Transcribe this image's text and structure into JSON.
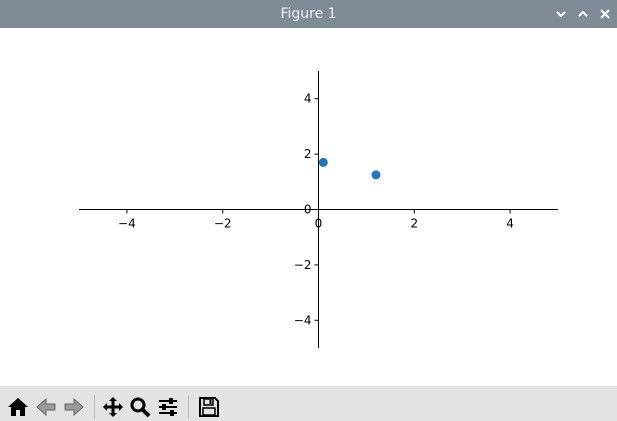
{
  "window": {
    "title": "Figure 1",
    "buttons": [
      "minimize",
      "maximize",
      "close"
    ]
  },
  "toolbar": {
    "items": [
      {
        "name": "home-button",
        "icon": "home-icon"
      },
      {
        "name": "back-button",
        "icon": "arrow-left-icon"
      },
      {
        "name": "forward-button",
        "icon": "arrow-right-icon"
      },
      {
        "name": "pan-button",
        "icon": "move-icon"
      },
      {
        "name": "zoom-button",
        "icon": "magnifier-icon"
      },
      {
        "name": "configure-subplots-button",
        "icon": "sliders-icon"
      },
      {
        "name": "save-button",
        "icon": "floppy-disk-icon"
      }
    ]
  },
  "chart_data": {
    "type": "scatter",
    "title": "",
    "xlabel": "",
    "ylabel": "",
    "xlim": [
      -5,
      5
    ],
    "ylim": [
      -5,
      5
    ],
    "xticks": [
      -4,
      -2,
      0,
      2,
      4
    ],
    "yticks": [
      -4,
      -2,
      0,
      2,
      4
    ],
    "xtick_labels": [
      "−4",
      "−2",
      "0",
      "2",
      "4"
    ],
    "ytick_labels": [
      "−4",
      "−2",
      "0",
      "2",
      "4"
    ],
    "spines": "centered at origin",
    "grid": false,
    "series": [
      {
        "color": "#1f77b4",
        "points": [
          [
            0.1,
            1.7
          ],
          [
            1.2,
            1.25
          ]
        ]
      }
    ]
  }
}
